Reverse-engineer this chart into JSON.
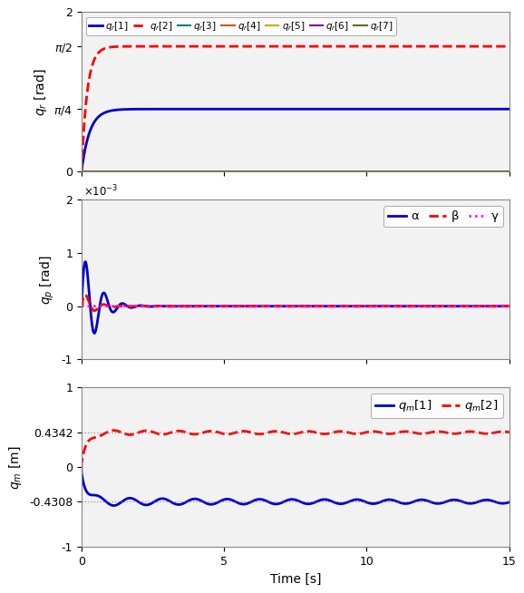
{
  "t_start": 0,
  "t_end": 15,
  "n_points": 3000,
  "panel1": {
    "ylabel": "q_r [rad]",
    "ylim": [
      0,
      2
    ],
    "yticks": [
      0,
      0.7854,
      1.5708,
      2
    ],
    "legend_labels": [
      "q_r[1]",
      "q_r[2]",
      "q_r[3]",
      "q_r[4]",
      "q_r[5]",
      "q_r[6]",
      "q_r[7]"
    ],
    "colors": [
      "#0000cc",
      "#ff0000",
      "#008080",
      "#cc5500",
      "#ccaa00",
      "#7700aa",
      "#557700"
    ],
    "styles": [
      "-",
      "--",
      "-",
      "-",
      "-",
      "-",
      "-"
    ],
    "linewidths": [
      2.0,
      2.0,
      1.5,
      1.5,
      1.5,
      1.5,
      1.5
    ],
    "q1_final": 0.7854,
    "q2_final": 1.5708,
    "q1_tau": 3.5,
    "q2_tau": 5.0
  },
  "panel2": {
    "ylabel": "q_p [rad]",
    "ylim": [
      -0.001,
      0.002
    ],
    "yticks": [
      -0.001,
      0,
      0.001,
      0.002
    ],
    "ytick_labels": [
      "-1",
      "0",
      "1",
      "2"
    ],
    "legend_labels": [
      "α",
      "β",
      "γ"
    ],
    "colors": [
      "#0000cc",
      "#ff0000",
      "#ff00ff"
    ],
    "styles": [
      "-",
      "--",
      ":"
    ],
    "linewidths": [
      2.0,
      2.0,
      1.8
    ]
  },
  "panel3": {
    "ylabel": "q_m [m]",
    "xlabel": "Time [s]",
    "ylim": [
      -1,
      1
    ],
    "yticks": [
      -1,
      -0.4308,
      0,
      0.4342,
      1
    ],
    "ytick_labels": [
      "-1",
      "-0.4308",
      "0",
      "0.4342",
      "1"
    ],
    "hlines": [
      -0.4308,
      0.4342
    ],
    "legend_labels": [
      "q_m[1]",
      "q_m[2]"
    ],
    "colors": [
      "#0000cc",
      "#ff0000"
    ],
    "styles": [
      "-",
      "--"
    ],
    "linewidths": [
      2.0,
      2.0
    ],
    "qm1_final": -0.4308,
    "qm2_final": 0.4342
  },
  "xlim": [
    0,
    15
  ],
  "xticks": [
    0,
    5,
    10,
    15
  ],
  "bg_color": "#f2f2f2",
  "fig_facecolor": "#ffffff"
}
